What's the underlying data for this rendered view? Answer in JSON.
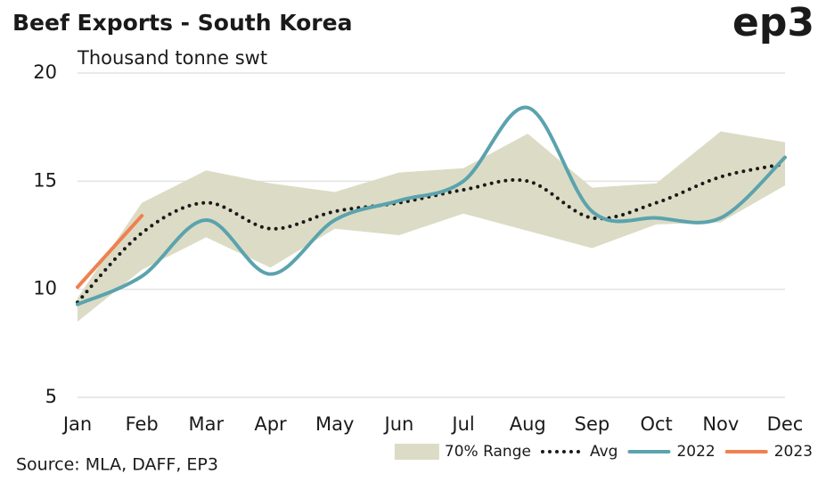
{
  "chart_data": {
    "type": "line",
    "title": "Beef Exports - South Korea",
    "subtitle": "Thousand tonne swt",
    "logo": "ep3",
    "source": "Source: MLA, DAFF, EP3",
    "categories": [
      "Jan",
      "Feb",
      "Mar",
      "Apr",
      "May",
      "Jun",
      "Jul",
      "Aug",
      "Sep",
      "Oct",
      "Nov",
      "Dec"
    ],
    "ylim": [
      5,
      20
    ],
    "yticks": [
      5,
      10,
      15,
      20
    ],
    "grid": true,
    "legend": "bottom-right",
    "series": [
      {
        "name": "70% Range",
        "color": "#dcdcc6",
        "lower": [
          8.5,
          10.9,
          12.4,
          11.0,
          12.8,
          12.5,
          13.5,
          12.7,
          11.9,
          13.0,
          13.1,
          14.8
        ],
        "upper": [
          9.6,
          14.0,
          15.5,
          14.9,
          14.5,
          15.4,
          15.6,
          17.2,
          14.7,
          14.9,
          17.3,
          16.8
        ]
      },
      {
        "name": "Avg",
        "color": "#1a1a1a",
        "dash": true,
        "values": [
          9.4,
          12.6,
          14.0,
          12.8,
          13.6,
          14.0,
          14.6,
          15.0,
          13.3,
          14.0,
          15.2,
          15.8
        ]
      },
      {
        "name": "2022",
        "color": "#5ba3ad",
        "values": [
          9.3,
          10.6,
          13.2,
          10.7,
          13.2,
          14.1,
          15.0,
          18.4,
          13.6,
          13.3,
          13.3,
          16.1
        ]
      },
      {
        "name": "2023",
        "color": "#f08050",
        "values": [
          10.1,
          13.4,
          null,
          null,
          null,
          null,
          null,
          null,
          null,
          null,
          null,
          null
        ]
      }
    ]
  }
}
